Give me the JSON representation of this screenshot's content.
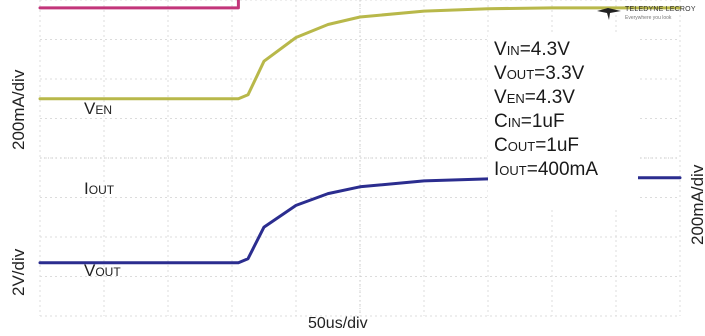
{
  "chart_data": {
    "type": "line",
    "x_scale_label": "50us/div",
    "left_scales": {
      "upper": "200mA/div",
      "lower": "2V/div"
    },
    "right_scale": "200mA/div",
    "x_divisions": 10,
    "y_divisions": 8,
    "grid": true,
    "series": [
      {
        "name": "VEN",
        "label_main": "V",
        "label_sub": "EN",
        "color": "#c2357a",
        "x": [
          0,
          3.1,
          3.1,
          10
        ],
        "y": [
          3.8,
          3.8,
          7.65,
          7.5
        ]
      },
      {
        "name": "IOUT",
        "label_main": "I",
        "label_sub": "OUT",
        "color": "#b8b84a",
        "x": [
          0,
          3.1,
          3.25,
          3.5,
          4.0,
          4.5,
          5.0,
          6.0,
          7.0,
          8.0,
          9.0,
          10
        ],
        "y": [
          1.5,
          1.5,
          1.6,
          2.45,
          3.05,
          3.38,
          3.57,
          3.72,
          3.78,
          3.8,
          3.8,
          3.8
        ]
      },
      {
        "name": "VOUT",
        "label_main": "V",
        "label_sub": "OUT",
        "color": "#2b2d8f",
        "x": [
          0,
          3.1,
          3.25,
          3.5,
          4.0,
          4.5,
          5.0,
          6.0,
          7.0,
          8.0,
          9.0,
          10
        ],
        "y": [
          -2.65,
          -2.65,
          -2.55,
          -1.75,
          -1.2,
          -0.9,
          -0.73,
          -0.58,
          -0.53,
          -0.5,
          -0.5,
          -0.5
        ]
      }
    ],
    "params": [
      {
        "main": "V",
        "sub": "IN",
        "value": "=4.3V"
      },
      {
        "main": "V",
        "sub": "OUT",
        "value": "=3.3V"
      },
      {
        "main": "V",
        "sub": "EN",
        "value": "=4.3V"
      },
      {
        "main": "C",
        "sub": "IN",
        "value": "=1uF"
      },
      {
        "main": "C",
        "sub": "OUT",
        "value": "=1uF"
      },
      {
        "main": "I",
        "sub": "OUT",
        "value": "=400mA"
      }
    ],
    "logo": {
      "text": "TELEDYNE LECROY",
      "tagline": "Everywhere you look"
    }
  }
}
